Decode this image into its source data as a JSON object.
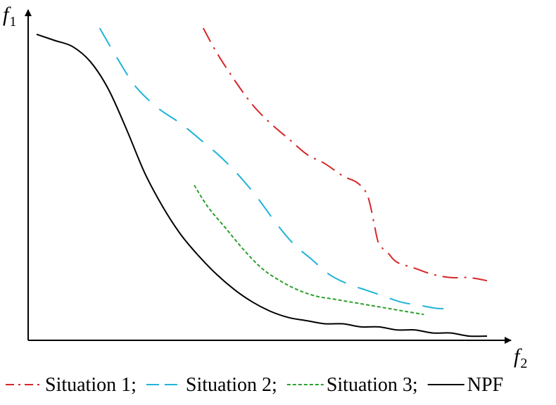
{
  "chart_data": {
    "type": "line",
    "xlabel": "f",
    "xlabel_sub": "2",
    "ylabel": "f",
    "ylabel_sub": "1",
    "xlim": [
      0,
      100
    ],
    "ylim": [
      0,
      100
    ],
    "grid": false,
    "legend_position": "bottom",
    "series": [
      {
        "name": "Situation 1;",
        "color": "#d62728",
        "dash": "dash-dot",
        "x": [
          37,
          40,
          44,
          48,
          52,
          56,
          60,
          64,
          68,
          71,
          73,
          74,
          75,
          76,
          78,
          80,
          84,
          88,
          92,
          96,
          100
        ],
        "y": [
          100,
          92,
          83,
          75,
          69,
          64,
          59,
          56,
          52,
          50,
          47,
          43,
          36,
          30,
          27,
          24,
          22,
          20,
          19,
          19,
          18
        ]
      },
      {
        "name": "Situation 2;",
        "color": "#1fb4d8",
        "dash": "long-dash",
        "x": [
          14,
          18,
          22,
          27,
          32,
          37,
          41,
          45,
          49,
          53,
          57,
          61,
          65,
          69,
          73,
          77,
          81,
          85,
          89,
          93
        ],
        "y": [
          100,
          90,
          81,
          74,
          69,
          63,
          58,
          52,
          45,
          37,
          30,
          25,
          20,
          17,
          15,
          13,
          11,
          10,
          9,
          9
        ]
      },
      {
        "name": "Situation 3;",
        "color": "#2ca02c",
        "dash": "dotted-dash",
        "x": [
          35,
          38,
          42,
          46,
          50,
          54,
          58,
          62,
          66,
          70,
          74,
          78,
          82,
          86
        ],
        "y": [
          49,
          42,
          35,
          28,
          22,
          18,
          15,
          13,
          12,
          11,
          10,
          9,
          8,
          7
        ]
      },
      {
        "name": "NPF",
        "color": "#000000",
        "dash": "solid",
        "x": [
          0,
          4,
          8,
          12,
          16,
          20,
          24,
          28,
          32,
          36,
          40,
          44,
          48,
          52,
          56,
          60,
          64,
          68,
          72,
          76,
          80,
          84,
          88,
          92,
          96,
          100
        ],
        "y": [
          98,
          96,
          94,
          89,
          80,
          67,
          53,
          42,
          33,
          26,
          20,
          15,
          11,
          8,
          6,
          5,
          4,
          4,
          3,
          3,
          2,
          2,
          1,
          1,
          0,
          0
        ]
      }
    ]
  }
}
